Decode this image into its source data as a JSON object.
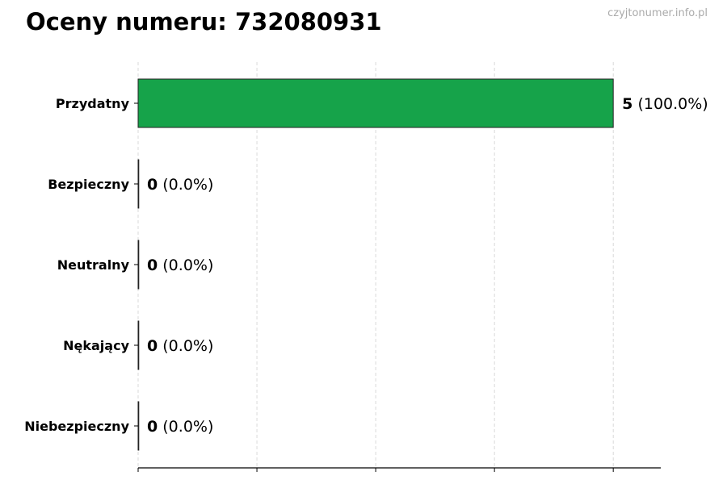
{
  "title": "Oceny numeru: 732080931",
  "watermark": "czyjtonumer.info.pl",
  "chart_data": {
    "type": "bar",
    "orientation": "horizontal",
    "title": "Oceny numeru: 732080931",
    "categories": [
      "Przydatny",
      "Bezpieczny",
      "Neutralny",
      "Nękający",
      "Niebezpieczny"
    ],
    "values": [
      5,
      0,
      0,
      0,
      0
    ],
    "labels": [
      {
        "count": "5",
        "pct": "(100.0%)"
      },
      {
        "count": "0",
        "pct": "(0.0%)"
      },
      {
        "count": "0",
        "pct": "(0.0%)"
      },
      {
        "count": "0",
        "pct": "(0.0%)"
      },
      {
        "count": "0",
        "pct": "(0.0%)"
      }
    ],
    "xlim": [
      0,
      5.5
    ],
    "x_gridlines": [
      0,
      1.25,
      2.5,
      3.75,
      5
    ],
    "x_tick_labels_shown": false,
    "grid": "x dashed",
    "legend": "none",
    "bar_color": "#16a34a",
    "xlabel": "",
    "ylabel": ""
  }
}
